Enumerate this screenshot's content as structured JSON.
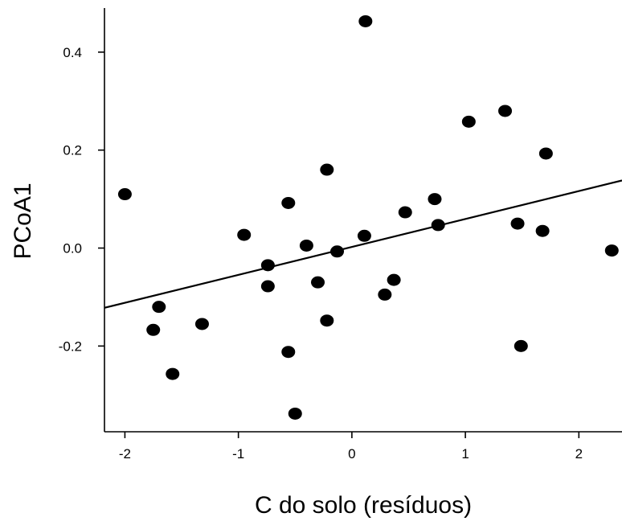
{
  "chart_data": {
    "type": "scatter",
    "xlabel": "C do solo (resíduos)",
    "ylabel": "PCoA1",
    "xlim": [
      -2.18,
      2.38
    ],
    "ylim": [
      -0.375,
      0.49
    ],
    "x_ticks": [
      -2,
      -1,
      0,
      1,
      2
    ],
    "y_ticks": [
      -0.2,
      0.0,
      0.2,
      0.4
    ],
    "x_tick_labels": [
      "-2",
      "-1",
      "0",
      "1",
      "2"
    ],
    "y_tick_labels": [
      "-0.2",
      "0.0",
      "0.2",
      "0.4"
    ],
    "grid": false,
    "legend": "none",
    "point_color": "#000000",
    "points": [
      {
        "x": -2.0,
        "y": 0.11
      },
      {
        "x": -1.75,
        "y": -0.167
      },
      {
        "x": -1.7,
        "y": -0.12
      },
      {
        "x": -1.58,
        "y": -0.257
      },
      {
        "x": -1.32,
        "y": -0.155
      },
      {
        "x": -0.95,
        "y": 0.027
      },
      {
        "x": -0.74,
        "y": -0.035
      },
      {
        "x": -0.74,
        "y": -0.078
      },
      {
        "x": -0.56,
        "y": 0.092
      },
      {
        "x": -0.56,
        "y": -0.212
      },
      {
        "x": -0.5,
        "y": -0.338
      },
      {
        "x": -0.4,
        "y": 0.005
      },
      {
        "x": -0.3,
        "y": -0.07
      },
      {
        "x": -0.22,
        "y": 0.16
      },
      {
        "x": -0.22,
        "y": -0.148
      },
      {
        "x": -0.13,
        "y": -0.007
      },
      {
        "x": 0.11,
        "y": 0.025
      },
      {
        "x": 0.12,
        "y": 0.463
      },
      {
        "x": 0.29,
        "y": -0.095
      },
      {
        "x": 0.37,
        "y": -0.065
      },
      {
        "x": 0.47,
        "y": 0.073
      },
      {
        "x": 0.73,
        "y": 0.1
      },
      {
        "x": 0.76,
        "y": 0.047
      },
      {
        "x": 1.03,
        "y": 0.258
      },
      {
        "x": 1.35,
        "y": 0.28
      },
      {
        "x": 1.46,
        "y": 0.05
      },
      {
        "x": 1.49,
        "y": -0.2
      },
      {
        "x": 1.68,
        "y": 0.035
      },
      {
        "x": 1.71,
        "y": 0.193
      },
      {
        "x": 2.29,
        "y": -0.005
      }
    ],
    "trendline": {
      "x": [
        -2.18,
        2.38
      ],
      "y": [
        -0.122,
        0.138
      ]
    }
  }
}
